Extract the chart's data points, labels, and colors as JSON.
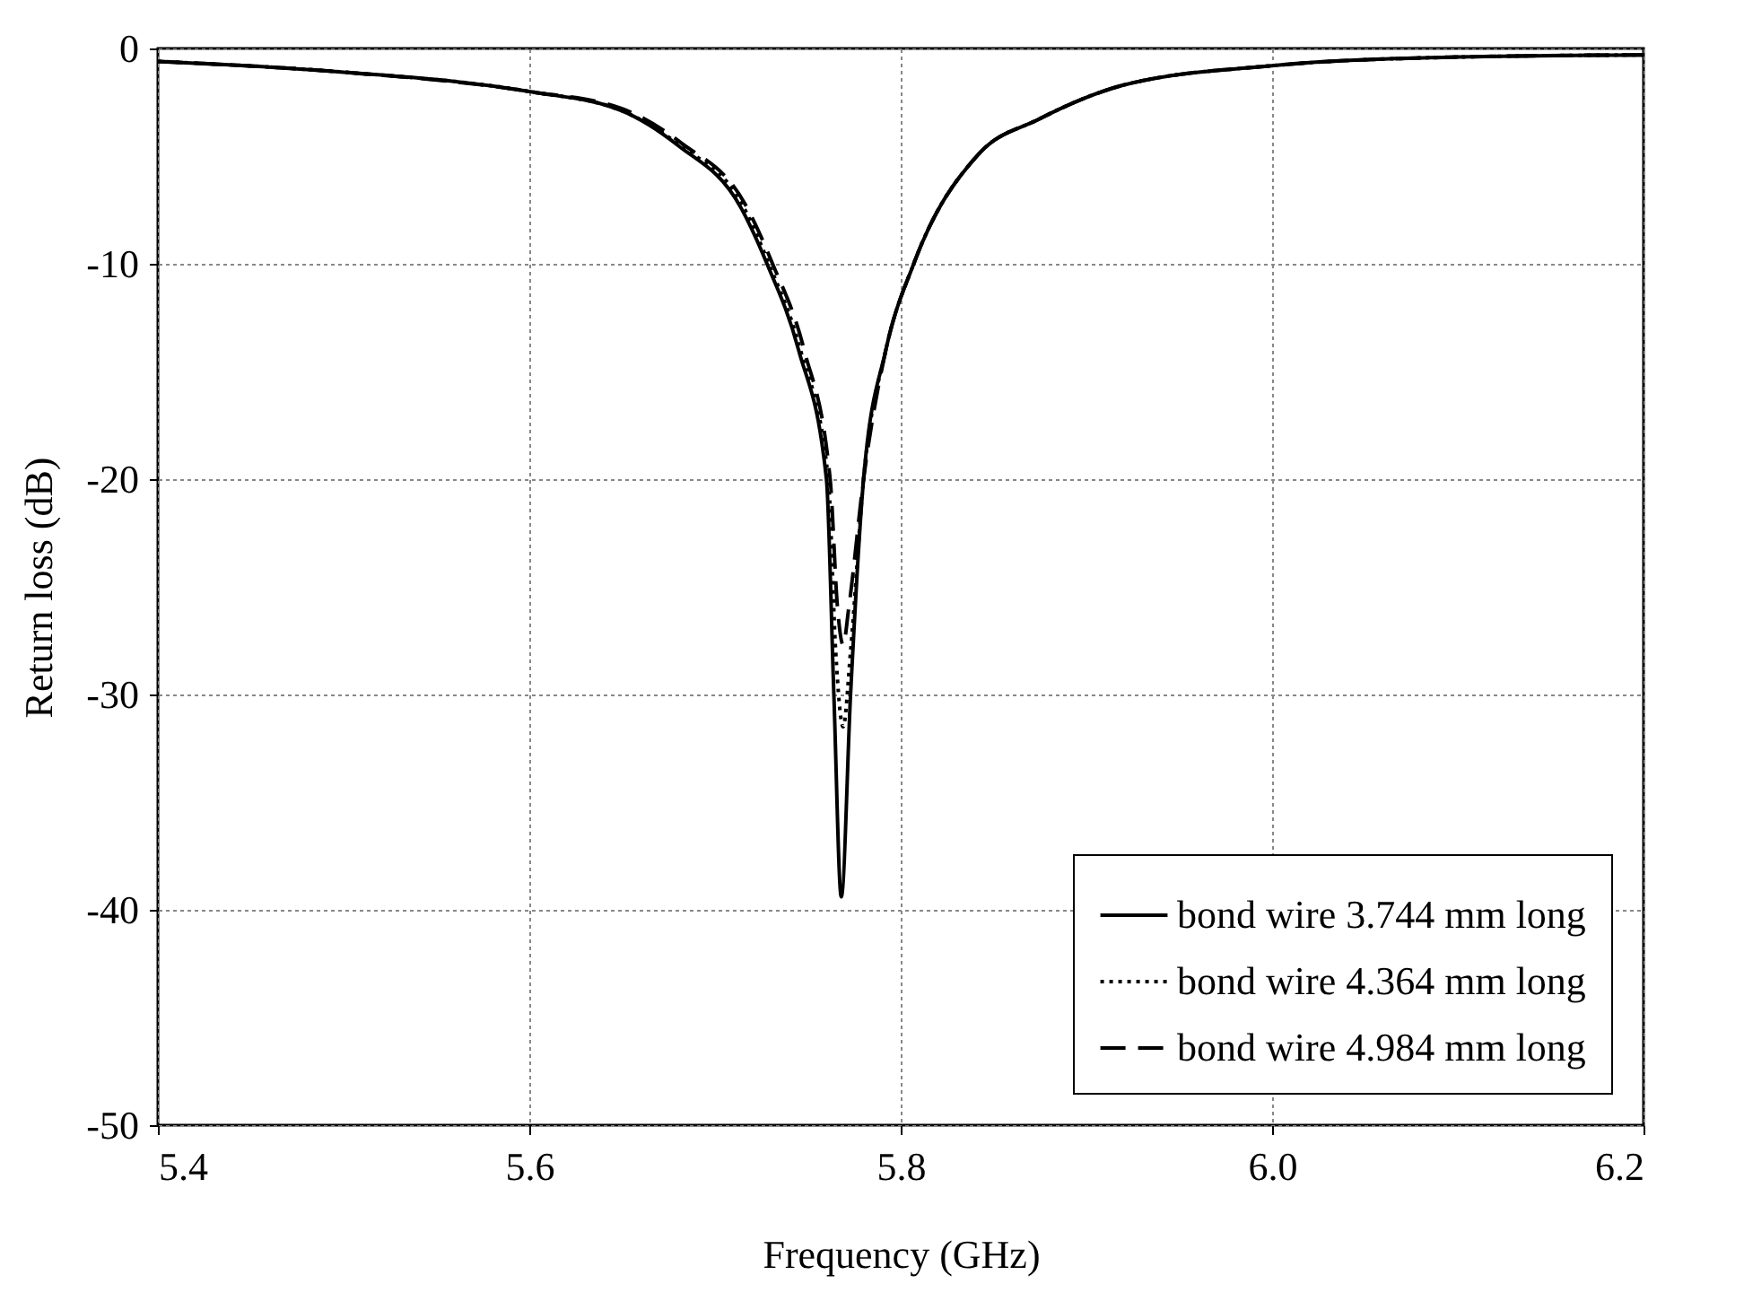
{
  "chart_data": {
    "type": "line",
    "xlabel": "Frequency (GHz)",
    "ylabel": "Return loss (dB)",
    "xlim": [
      5.4,
      6.2
    ],
    "ylim": [
      -50,
      0
    ],
    "xticks": [
      5.4,
      5.6,
      5.8,
      {
        "value": 6,
        "label": "6.0"
      },
      6.2
    ],
    "yticks": [
      -50,
      -40,
      -30,
      -20,
      -10,
      0
    ],
    "grid": true,
    "legend": "bottom right",
    "series": [
      {
        "name": "bond wire 3.744 mm long",
        "color": "#000000",
        "line_style": "solid",
        "x": [
          5.4,
          5.5,
          5.6,
          5.65,
          5.68,
          5.714,
          5.728,
          5.745,
          5.76,
          5.764,
          5.768,
          5.773,
          5.78,
          5.792,
          5.807,
          5.842,
          5.874,
          5.92,
          6.0,
          6.1,
          6.2
        ],
        "values": [
          -0.6,
          -1.1,
          -2.0,
          -2.9,
          -4.5,
          -7.4,
          -10,
          -14,
          -20,
          -30,
          -39.4,
          -30,
          -20,
          -14,
          -10,
          -4.9,
          -3.3,
          -1.7,
          -0.8,
          -0.4,
          -0.3
        ]
      },
      {
        "name": "bond wire 4.364 mm long",
        "color": "#000000",
        "line_style": "dotted",
        "x": [
          5.4,
          5.5,
          5.6,
          5.65,
          5.681,
          5.715,
          5.729,
          5.746,
          5.761,
          5.765,
          5.769,
          5.773,
          5.78,
          5.792,
          5.807,
          5.842,
          5.874,
          5.92,
          6.0,
          6.1,
          6.2
        ],
        "values": [
          -0.6,
          -1.1,
          -2.0,
          -2.9,
          -4.5,
          -7.3,
          -10,
          -14,
          -20,
          -28,
          -31.5,
          -28,
          -20,
          -14,
          -10,
          -4.9,
          -3.3,
          -1.7,
          -0.8,
          -0.4,
          -0.3
        ]
      },
      {
        "name": "bond wire 4.984 mm long",
        "color": "#000000",
        "line_style": "dashed",
        "x": [
          5.4,
          5.5,
          5.6,
          5.65,
          5.682,
          5.716,
          5.731,
          5.748,
          5.762,
          5.766,
          5.769,
          5.772,
          5.78,
          5.792,
          5.807,
          5.842,
          5.874,
          5.92,
          6.0,
          6.1,
          6.2
        ],
        "values": [
          -0.6,
          -1.1,
          -2.0,
          -2.8,
          -4.4,
          -7.2,
          -10,
          -14,
          -20,
          -26,
          -27.7,
          -26,
          -20,
          -14,
          -10,
          -4.9,
          -3.3,
          -1.7,
          -0.8,
          -0.4,
          -0.3
        ]
      }
    ]
  }
}
